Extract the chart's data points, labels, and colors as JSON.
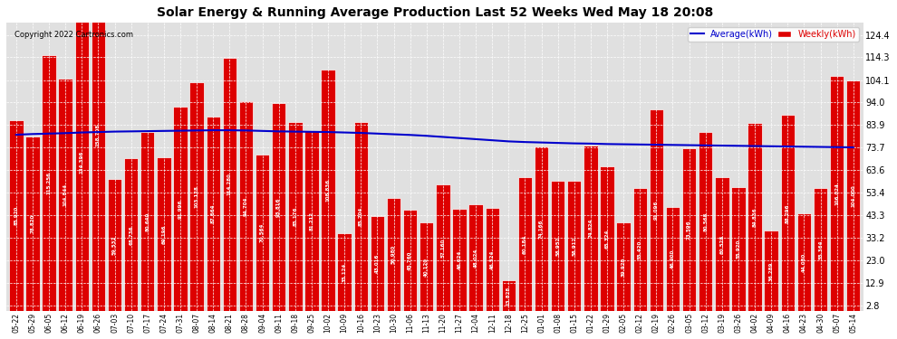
{
  "title": "Solar Energy & Running Average Production Last 52 Weeks Wed May 18 20:08",
  "copyright": "Copyright 2022 Cartronics.com",
  "legend_avg": "Average(kWh)",
  "legend_weekly": "Weekly(kWh)",
  "bar_color": "#dd0000",
  "bar_edge_color": "#ffffff",
  "avg_line_color": "#0000cc",
  "background_color": "#ffffff",
  "plot_bg_color": "#e0e0e0",
  "yticks": [
    2.8,
    12.9,
    23.0,
    33.2,
    43.3,
    53.4,
    63.6,
    73.7,
    83.9,
    94.0,
    104.1,
    114.3,
    124.4
  ],
  "categories": [
    "05-22",
    "05-29",
    "06-05",
    "06-12",
    "06-19",
    "06-26",
    "07-03",
    "07-10",
    "07-17",
    "07-24",
    "07-31",
    "08-07",
    "08-14",
    "08-21",
    "08-28",
    "09-04",
    "09-11",
    "09-18",
    "09-25",
    "10-02",
    "10-09",
    "10-16",
    "10-23",
    "10-30",
    "11-06",
    "11-13",
    "11-20",
    "11-27",
    "12-04",
    "12-11",
    "12-18",
    "12-25",
    "01-01",
    "01-08",
    "01-15",
    "01-22",
    "01-29",
    "02-05",
    "02-12",
    "02-19",
    "02-26",
    "03-05",
    "03-12",
    "03-19",
    "03-26",
    "04-02",
    "04-09",
    "04-16",
    "04-23",
    "04-30",
    "05-07",
    "05-14"
  ],
  "values": [
    85.92,
    78.82,
    115.256,
    104.844,
    134.396,
    158.708,
    59.532,
    68.736,
    80.64,
    69.196,
    91.996,
    103.128,
    87.664,
    114.28,
    94.704,
    70.564,
    93.816,
    85.176,
    81.212,
    108.836,
    35.124,
    85.204,
    43.016,
    50.98,
    45.76,
    40.12,
    57.16,
    46.024,
    48.024,
    46.524,
    13.828,
    60.184,
    74.166,
    58.952,
    58.912,
    74.824,
    65.324,
    39.92,
    55.42,
    91.096,
    46.9,
    73.596,
    80.568,
    60.528,
    55.92,
    84.836,
    36.289,
    88.296,
    44.08,
    55.364,
    106.024,
    104.0
  ],
  "avg_values": [
    79.5,
    79.8,
    80.0,
    80.2,
    80.5,
    80.7,
    80.9,
    81.0,
    81.1,
    81.2,
    81.3,
    81.4,
    81.5,
    81.5,
    81.4,
    81.2,
    81.0,
    80.9,
    80.8,
    80.7,
    80.5,
    80.3,
    80.0,
    79.7,
    79.4,
    79.0,
    78.5,
    78.0,
    77.5,
    77.0,
    76.5,
    76.2,
    76.0,
    75.8,
    75.6,
    75.5,
    75.3,
    75.2,
    75.1,
    75.0,
    74.9,
    74.8,
    74.7,
    74.6,
    74.5,
    74.4,
    74.3,
    74.2,
    74.1,
    74.0,
    73.9,
    73.8
  ],
  "ylim": [
    0,
    130
  ],
  "figsize": [
    9.9,
    3.75
  ],
  "dpi": 100
}
